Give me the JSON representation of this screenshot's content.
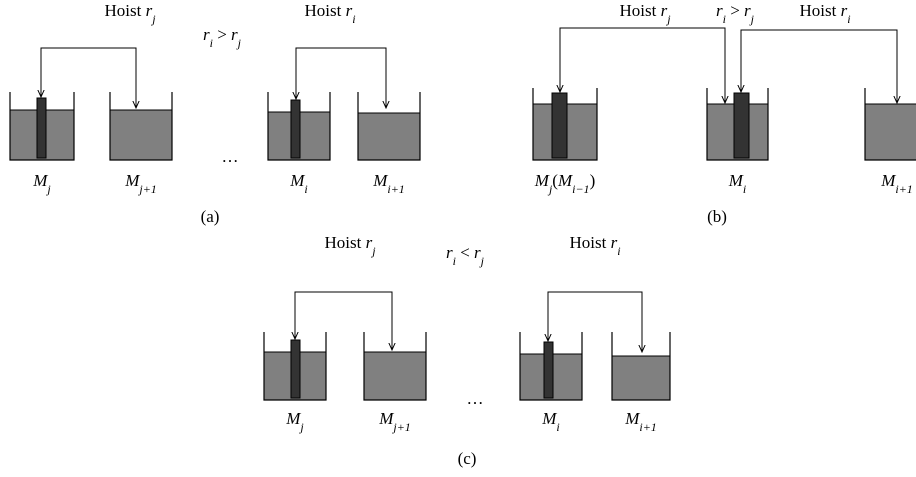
{
  "panels": [
    {
      "caption": "(a)",
      "hoists": [
        [
          {
            "text": "Hoist ",
            "style": "plain"
          },
          {
            "text": "r",
            "style": "var"
          },
          {
            "text": "j",
            "style": "sub"
          }
        ],
        [
          {
            "text": "Hoist ",
            "style": "plain"
          },
          {
            "text": "r",
            "style": "var"
          },
          {
            "text": "i",
            "style": "sub"
          }
        ]
      ],
      "relation": [
        {
          "text": "r",
          "style": "var"
        },
        {
          "text": "i",
          "style": "sub"
        },
        {
          "text": " > ",
          "style": "plain"
        },
        {
          "text": "r",
          "style": "var"
        },
        {
          "text": "j",
          "style": "sub"
        }
      ],
      "ellipsis": "…",
      "tanks": [
        [
          {
            "text": "M",
            "style": "var"
          },
          {
            "text": "j",
            "style": "sub"
          }
        ],
        [
          {
            "text": "M",
            "style": "var"
          },
          {
            "text": "j+1",
            "style": "sub"
          }
        ],
        [
          {
            "text": "M",
            "style": "var"
          },
          {
            "text": "i",
            "style": "sub"
          }
        ],
        [
          {
            "text": "M",
            "style": "var"
          },
          {
            "text": "i+1",
            "style": "sub"
          }
        ]
      ]
    },
    {
      "caption": "(b)",
      "hoists": [
        [
          {
            "text": "Hoist ",
            "style": "plain"
          },
          {
            "text": "r",
            "style": "var"
          },
          {
            "text": "j",
            "style": "sub"
          }
        ],
        [
          {
            "text": "Hoist ",
            "style": "plain"
          },
          {
            "text": "r",
            "style": "var"
          },
          {
            "text": "i",
            "style": "sub"
          }
        ]
      ],
      "relation": [
        {
          "text": "r",
          "style": "var"
        },
        {
          "text": "i",
          "style": "sub"
        },
        {
          "text": " > ",
          "style": "plain"
        },
        {
          "text": "r",
          "style": "var"
        },
        {
          "text": "j",
          "style": "sub"
        }
      ],
      "tanks": [
        [
          {
            "text": "M",
            "style": "var"
          },
          {
            "text": "j",
            "style": "sub"
          },
          {
            "text": "(",
            "style": "plain"
          },
          {
            "text": "M",
            "style": "var"
          },
          {
            "text": "i−1",
            "style": "sub"
          },
          {
            "text": ")",
            "style": "plain"
          }
        ],
        [
          {
            "text": "M",
            "style": "var"
          },
          {
            "text": "i",
            "style": "sub"
          }
        ],
        [
          {
            "text": "M",
            "style": "var"
          },
          {
            "text": "i+1",
            "style": "sub"
          }
        ]
      ]
    },
    {
      "caption": "(c)",
      "hoists": [
        [
          {
            "text": "Hoist ",
            "style": "plain"
          },
          {
            "text": "r",
            "style": "var"
          },
          {
            "text": "j",
            "style": "sub"
          }
        ],
        [
          {
            "text": "Hoist ",
            "style": "plain"
          },
          {
            "text": "r",
            "style": "var"
          },
          {
            "text": "i",
            "style": "sub"
          }
        ]
      ],
      "relation": [
        {
          "text": "r",
          "style": "var"
        },
        {
          "text": "i",
          "style": "sub"
        },
        {
          "text": " < ",
          "style": "plain"
        },
        {
          "text": "r",
          "style": "var"
        },
        {
          "text": "j",
          "style": "sub"
        }
      ],
      "ellipsis": "…",
      "tanks": [
        [
          {
            "text": "M",
            "style": "var"
          },
          {
            "text": "j",
            "style": "sub"
          }
        ],
        [
          {
            "text": "M",
            "style": "var"
          },
          {
            "text": "j+1",
            "style": "sub"
          }
        ],
        [
          {
            "text": "M",
            "style": "var"
          },
          {
            "text": "i",
            "style": "sub"
          }
        ],
        [
          {
            "text": "M",
            "style": "var"
          },
          {
            "text": "i+1",
            "style": "sub"
          }
        ]
      ]
    }
  ]
}
